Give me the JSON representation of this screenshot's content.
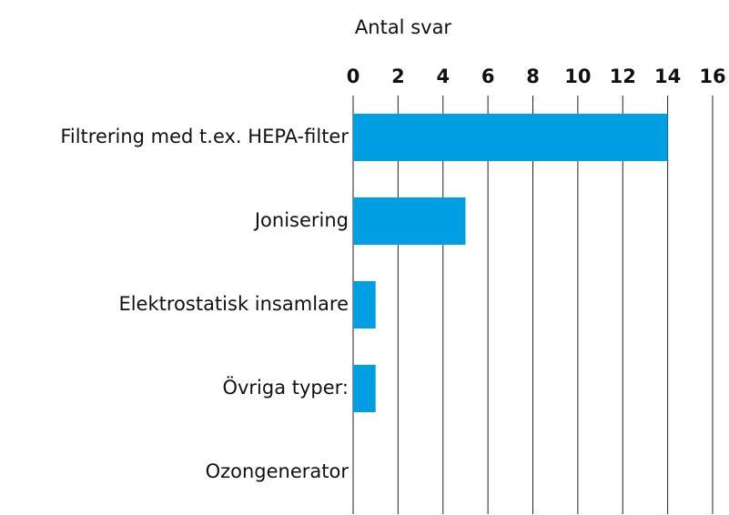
{
  "chart_data": {
    "type": "bar",
    "orientation": "horizontal",
    "x_label": "Antal svar",
    "categories": [
      "Filtrering med t.ex. HEPA-filter",
      "Jonisering",
      "Elektrostatisk insamlare",
      "Övriga typer:",
      "Ozongenerator"
    ],
    "values": [
      14,
      5,
      1,
      1,
      0
    ],
    "color": "#009fe3",
    "xlim": [
      0,
      16
    ],
    "xticks": [
      0,
      2,
      4,
      6,
      8,
      10,
      12,
      14,
      16
    ],
    "grid": true
  }
}
